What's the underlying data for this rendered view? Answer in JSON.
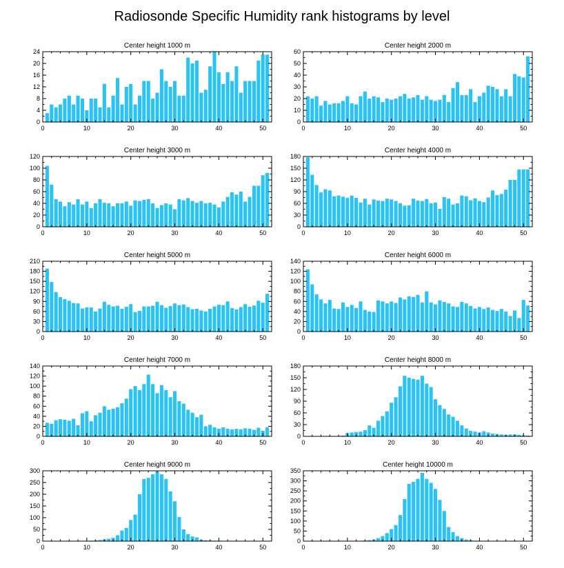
{
  "figure_title": "Radiosonde Specific Humidity rank histograms by level",
  "colors": {
    "bar": "#29c4f5",
    "axis": "#000000"
  },
  "chart_data": [
    {
      "type": "bar",
      "title": "Center height 1000 m",
      "xlim": [
        0,
        52
      ],
      "xticks": [
        0,
        10,
        20,
        30,
        40,
        50
      ],
      "ylim": [
        0,
        24
      ],
      "yticks": [
        0,
        4,
        8,
        12,
        16,
        20,
        24
      ],
      "x": [
        1,
        2,
        3,
        4,
        5,
        6,
        7,
        8,
        9,
        10,
        11,
        12,
        13,
        14,
        15,
        16,
        17,
        18,
        19,
        20,
        21,
        22,
        23,
        24,
        25,
        26,
        27,
        28,
        29,
        30,
        31,
        32,
        33,
        34,
        35,
        36,
        37,
        38,
        39,
        40,
        41,
        42,
        43,
        44,
        45,
        46,
        47,
        48,
        49,
        50,
        51
      ],
      "values": [
        3,
        6,
        5,
        6,
        8,
        9,
        6,
        9,
        8,
        4,
        8,
        8,
        5,
        13,
        5,
        9,
        15,
        6,
        12,
        13,
        6,
        9,
        14,
        14,
        8,
        10,
        18,
        14,
        12,
        14,
        9,
        9,
        22,
        20,
        21,
        10,
        11,
        19,
        24,
        17,
        13,
        17,
        14,
        19,
        10,
        14,
        14,
        14,
        21,
        23,
        23
      ]
    },
    {
      "type": "bar",
      "title": "Center height 2000 m",
      "xlim": [
        0,
        52
      ],
      "xticks": [
        0,
        10,
        20,
        30,
        40,
        50
      ],
      "ylim": [
        0,
        60
      ],
      "yticks": [
        0,
        10,
        20,
        30,
        40,
        50,
        60
      ],
      "x": [
        1,
        2,
        3,
        4,
        5,
        6,
        7,
        8,
        9,
        10,
        11,
        12,
        13,
        14,
        15,
        16,
        17,
        18,
        19,
        20,
        21,
        22,
        23,
        24,
        25,
        26,
        27,
        28,
        29,
        30,
        31,
        32,
        33,
        34,
        35,
        36,
        37,
        38,
        39,
        40,
        41,
        42,
        43,
        44,
        45,
        46,
        47,
        48,
        49,
        50,
        51
      ],
      "values": [
        22,
        20,
        22,
        14,
        18,
        15,
        16,
        16,
        18,
        22,
        16,
        15,
        22,
        26,
        20,
        22,
        21,
        17,
        20,
        19,
        20,
        22,
        24,
        20,
        21,
        23,
        19,
        22,
        19,
        18,
        19,
        23,
        17,
        29,
        34,
        23,
        23,
        28,
        17,
        22,
        25,
        31,
        30,
        28,
        22,
        28,
        22,
        41,
        39,
        38,
        56
      ]
    },
    {
      "type": "bar",
      "title": "Center height 3000 m",
      "xlim": [
        0,
        52
      ],
      "xticks": [
        0,
        10,
        20,
        30,
        40,
        50
      ],
      "ylim": [
        0,
        120
      ],
      "yticks": [
        0,
        20,
        40,
        60,
        80,
        100,
        120
      ],
      "x": [
        1,
        2,
        3,
        4,
        5,
        6,
        7,
        8,
        9,
        10,
        11,
        12,
        13,
        14,
        15,
        16,
        17,
        18,
        19,
        20,
        21,
        22,
        23,
        24,
        25,
        26,
        27,
        28,
        29,
        30,
        31,
        32,
        33,
        34,
        35,
        36,
        37,
        38,
        39,
        40,
        41,
        42,
        43,
        44,
        45,
        46,
        47,
        48,
        49,
        50,
        51
      ],
      "values": [
        104,
        72,
        47,
        43,
        35,
        42,
        38,
        47,
        38,
        43,
        32,
        40,
        47,
        41,
        40,
        35,
        40,
        40,
        43,
        36,
        45,
        44,
        46,
        47,
        40,
        32,
        37,
        40,
        38,
        30,
        47,
        45,
        49,
        44,
        41,
        44,
        40,
        41,
        38,
        33,
        43,
        51,
        59,
        55,
        60,
        43,
        51,
        70,
        70,
        88,
        92
      ]
    },
    {
      "type": "bar",
      "title": "Center height 4000 m",
      "xlim": [
        0,
        52
      ],
      "xticks": [
        0,
        10,
        20,
        30,
        40,
        50
      ],
      "ylim": [
        0,
        180
      ],
      "yticks": [
        0,
        30,
        60,
        90,
        120,
        150,
        180
      ],
      "x": [
        1,
        2,
        3,
        4,
        5,
        6,
        7,
        8,
        9,
        10,
        11,
        12,
        13,
        14,
        15,
        16,
        17,
        18,
        19,
        20,
        21,
        22,
        23,
        24,
        25,
        26,
        27,
        28,
        29,
        30,
        31,
        32,
        33,
        34,
        35,
        36,
        37,
        38,
        39,
        40,
        41,
        42,
        43,
        44,
        45,
        46,
        47,
        48,
        49,
        50,
        51
      ],
      "values": [
        178,
        133,
        107,
        88,
        96,
        93,
        78,
        80,
        77,
        74,
        80,
        74,
        62,
        72,
        57,
        70,
        67,
        66,
        72,
        70,
        66,
        60,
        54,
        55,
        72,
        67,
        66,
        71,
        60,
        62,
        46,
        76,
        72,
        57,
        60,
        80,
        78,
        68,
        73,
        66,
        63,
        75,
        93,
        81,
        84,
        95,
        120,
        120,
        147,
        147,
        147
      ]
    },
    {
      "type": "bar",
      "title": "Center height 5000 m",
      "xlim": [
        0,
        52
      ],
      "xticks": [
        0,
        10,
        20,
        30,
        40,
        50
      ],
      "ylim": [
        0,
        210
      ],
      "yticks": [
        0,
        30,
        60,
        90,
        120,
        150,
        180,
        210
      ],
      "x": [
        1,
        2,
        3,
        4,
        5,
        6,
        7,
        8,
        9,
        10,
        11,
        12,
        13,
        14,
        15,
        16,
        17,
        18,
        19,
        20,
        21,
        22,
        23,
        24,
        25,
        26,
        27,
        28,
        29,
        30,
        31,
        32,
        33,
        34,
        35,
        36,
        37,
        38,
        39,
        40,
        41,
        42,
        43,
        44,
        45,
        46,
        47,
        48,
        49,
        50,
        51
      ],
      "values": [
        188,
        148,
        118,
        103,
        97,
        92,
        85,
        84,
        69,
        72,
        72,
        60,
        69,
        89,
        80,
        75,
        77,
        68,
        74,
        82,
        58,
        62,
        75,
        75,
        77,
        89,
        79,
        71,
        76,
        84,
        79,
        81,
        73,
        67,
        68,
        63,
        60,
        68,
        75,
        80,
        79,
        90,
        70,
        66,
        73,
        82,
        74,
        78,
        92,
        86,
        113
      ]
    },
    {
      "type": "bar",
      "title": "Center height 6000 m",
      "xlim": [
        0,
        52
      ],
      "xticks": [
        0,
        10,
        20,
        30,
        40,
        50
      ],
      "ylim": [
        0,
        140
      ],
      "yticks": [
        0,
        20,
        40,
        60,
        80,
        100,
        120,
        140
      ],
      "x": [
        1,
        2,
        3,
        4,
        5,
        6,
        7,
        8,
        9,
        10,
        11,
        12,
        13,
        14,
        15,
        16,
        17,
        18,
        19,
        20,
        21,
        22,
        23,
        24,
        25,
        26,
        27,
        28,
        29,
        30,
        31,
        32,
        33,
        34,
        35,
        36,
        37,
        38,
        39,
        40,
        41,
        42,
        43,
        44,
        45,
        46,
        47,
        48,
        49,
        50,
        51
      ],
      "values": [
        124,
        94,
        74,
        64,
        56,
        63,
        46,
        45,
        58,
        49,
        53,
        47,
        60,
        43,
        40,
        39,
        62,
        60,
        56,
        60,
        57,
        68,
        64,
        70,
        69,
        73,
        58,
        80,
        58,
        54,
        62,
        59,
        56,
        50,
        49,
        59,
        56,
        51,
        46,
        49,
        45,
        48,
        43,
        41,
        45,
        40,
        31,
        42,
        27,
        63,
        52
      ]
    },
    {
      "type": "bar",
      "title": "Center height 7000 m",
      "xlim": [
        0,
        52
      ],
      "xticks": [
        0,
        10,
        20,
        30,
        40,
        50
      ],
      "ylim": [
        0,
        140
      ],
      "yticks": [
        0,
        20,
        40,
        60,
        80,
        100,
        120,
        140
      ],
      "x": [
        1,
        2,
        3,
        4,
        5,
        6,
        7,
        8,
        9,
        10,
        11,
        12,
        13,
        14,
        15,
        16,
        17,
        18,
        19,
        20,
        21,
        22,
        23,
        24,
        25,
        26,
        27,
        28,
        29,
        30,
        31,
        32,
        33,
        34,
        35,
        36,
        37,
        38,
        39,
        40,
        41,
        42,
        43,
        44,
        45,
        46,
        47,
        48,
        49,
        50,
        51
      ],
      "values": [
        27,
        25,
        32,
        34,
        33,
        31,
        35,
        22,
        46,
        50,
        30,
        42,
        47,
        60,
        53,
        55,
        58,
        66,
        75,
        94,
        100,
        92,
        104,
        123,
        104,
        86,
        102,
        92,
        78,
        90,
        70,
        65,
        53,
        47,
        38,
        43,
        20,
        23,
        18,
        15,
        18,
        15,
        14,
        15,
        14,
        16,
        15,
        13,
        17,
        11,
        18
      ]
    },
    {
      "type": "bar",
      "title": "Center height 8000 m",
      "xlim": [
        0,
        52
      ],
      "xticks": [
        0,
        10,
        20,
        30,
        40,
        50
      ],
      "ylim": [
        0,
        180
      ],
      "yticks": [
        0,
        30,
        60,
        90,
        120,
        150,
        180
      ],
      "x": [
        1,
        2,
        3,
        4,
        5,
        6,
        7,
        8,
        9,
        10,
        11,
        12,
        13,
        14,
        15,
        16,
        17,
        18,
        19,
        20,
        21,
        22,
        23,
        24,
        25,
        26,
        27,
        28,
        29,
        30,
        31,
        32,
        33,
        34,
        35,
        36,
        37,
        38,
        39,
        40,
        41,
        42,
        43,
        44,
        45,
        46,
        47,
        48,
        49,
        50,
        51
      ],
      "values": [
        0,
        0,
        0,
        0,
        0,
        0,
        0,
        0,
        2,
        8,
        10,
        11,
        12,
        16,
        28,
        22,
        40,
        52,
        64,
        86,
        100,
        128,
        155,
        150,
        147,
        145,
        155,
        135,
        126,
        95,
        80,
        70,
        56,
        50,
        40,
        28,
        20,
        14,
        12,
        10,
        13,
        10,
        7,
        6,
        5,
        4,
        5,
        5,
        4,
        3,
        2
      ]
    },
    {
      "type": "bar",
      "title": "Center height 9000 m",
      "xlim": [
        0,
        52
      ],
      "xticks": [
        0,
        10,
        20,
        30,
        40,
        50
      ],
      "ylim": [
        0,
        300
      ],
      "yticks": [
        0,
        50,
        100,
        150,
        200,
        250,
        300
      ],
      "x": [
        1,
        2,
        3,
        4,
        5,
        6,
        7,
        8,
        9,
        10,
        11,
        12,
        13,
        14,
        15,
        16,
        17,
        18,
        19,
        20,
        21,
        22,
        23,
        24,
        25,
        26,
        27,
        28,
        29,
        30,
        31,
        32,
        33,
        34,
        35,
        36,
        37,
        38,
        39,
        40,
        41,
        42,
        43,
        44,
        45,
        46,
        47,
        48,
        49,
        50,
        51
      ],
      "values": [
        0,
        0,
        0,
        0,
        0,
        0,
        0,
        0,
        1,
        1,
        2,
        3,
        5,
        8,
        10,
        14,
        25,
        45,
        56,
        90,
        113,
        200,
        265,
        270,
        285,
        297,
        285,
        265,
        212,
        170,
        103,
        50,
        30,
        20,
        16,
        6,
        4,
        3,
        2,
        2,
        1,
        1,
        1,
        1,
        1,
        1,
        1,
        1,
        0,
        0,
        0
      ]
    },
    {
      "type": "bar",
      "title": "Center height 10000 m",
      "xlim": [
        0,
        52
      ],
      "xticks": [
        0,
        10,
        20,
        30,
        40,
        50
      ],
      "ylim": [
        0,
        350
      ],
      "yticks": [
        0,
        50,
        100,
        150,
        200,
        250,
        300,
        350
      ],
      "x": [
        1,
        2,
        3,
        4,
        5,
        6,
        7,
        8,
        9,
        10,
        11,
        12,
        13,
        14,
        15,
        16,
        17,
        18,
        19,
        20,
        21,
        22,
        23,
        24,
        25,
        26,
        27,
        28,
        29,
        30,
        31,
        32,
        33,
        34,
        35,
        36,
        37,
        38,
        39,
        40,
        41,
        42,
        43,
        44,
        45,
        46,
        47,
        48,
        49,
        50,
        51
      ],
      "values": [
        0,
        0,
        0,
        0,
        0,
        0,
        0,
        0,
        0,
        0,
        1,
        1,
        2,
        3,
        5,
        8,
        15,
        25,
        40,
        60,
        80,
        130,
        210,
        285,
        295,
        310,
        340,
        310,
        290,
        260,
        205,
        150,
        70,
        45,
        25,
        15,
        8,
        5,
        2,
        1,
        1,
        0,
        0,
        0,
        0,
        0,
        0,
        0,
        0,
        0,
        0
      ]
    }
  ]
}
